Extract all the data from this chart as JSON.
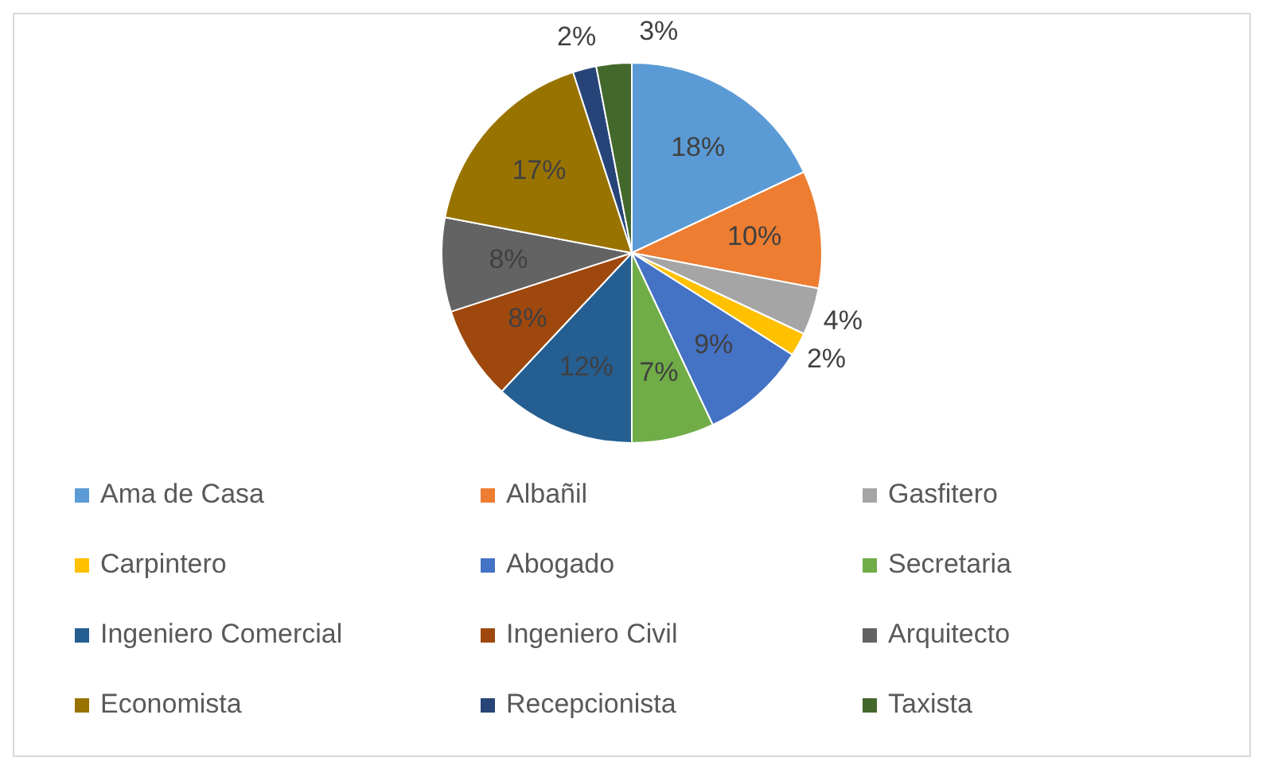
{
  "chart_data": {
    "type": "pie",
    "categories": [
      "Ama de Casa",
      "Albañil",
      "Gasfitero",
      "Carpintero",
      "Abogado",
      "Secretaria",
      "Ingeniero Comercial",
      "Ingeniero Civil",
      "Arquitecto",
      "Economista",
      "Recepcionista",
      "Taxista"
    ],
    "values": [
      18,
      10,
      4,
      2,
      9,
      7,
      12,
      8,
      8,
      17,
      2,
      3
    ],
    "colors": [
      "#5b9bd5",
      "#ed7d31",
      "#a5a5a5",
      "#ffc000",
      "#4472c4",
      "#70ad47",
      "#255e91",
      "#9e480e",
      "#636363",
      "#997300",
      "#264478",
      "#43682b"
    ],
    "value_labels": [
      "18%",
      "10%",
      "4%",
      "2%",
      "9%",
      "7%",
      "12%",
      "8%",
      "8%",
      "17%",
      "2%",
      "3%"
    ],
    "legend": "bottom"
  }
}
